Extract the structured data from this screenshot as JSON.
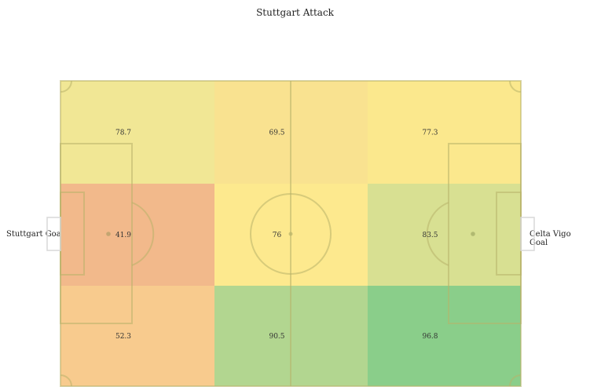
{
  "chart_data": {
    "type": "heatmap",
    "title": "Stuttgart Attack",
    "left_label": "Stuttgart Goal",
    "right_label": "Celta Vigo Goal",
    "rows": 3,
    "cols": 3,
    "values": [
      [
        78.7,
        69.5,
        77.3
      ],
      [
        41.9,
        76,
        83.5
      ],
      [
        52.3,
        90.5,
        96.8
      ]
    ],
    "colors": [
      [
        "#f1e795",
        "#f9e290",
        "#fbe88d"
      ],
      [
        "#f2b98b",
        "#fde98e",
        "#d8e092"
      ],
      [
        "#f8cb8e",
        "#b2d690",
        "#8ace8a"
      ]
    ]
  }
}
